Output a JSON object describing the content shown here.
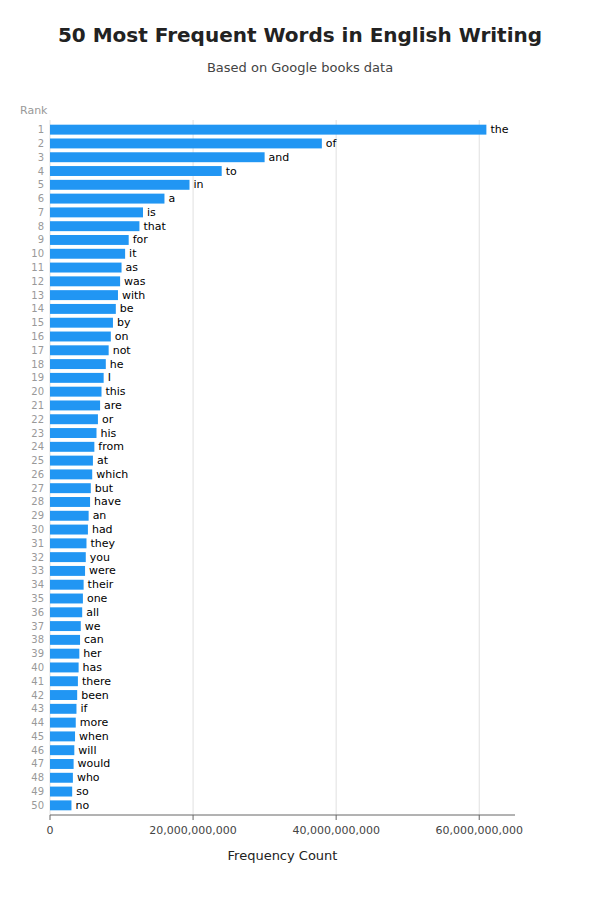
{
  "chart_data": {
    "type": "bar",
    "orientation": "horizontal",
    "title": "50 Most Frequent Words in English Writing",
    "subtitle": "Based on Google books data",
    "x_label": "Frequency Count",
    "y_label": "Rank",
    "categories": [
      "1",
      "2",
      "3",
      "4",
      "5",
      "6",
      "7",
      "8",
      "9",
      "10",
      "11",
      "12",
      "13",
      "14",
      "15",
      "16",
      "17",
      "18",
      "19",
      "20",
      "21",
      "22",
      "23",
      "24",
      "25",
      "26",
      "27",
      "28",
      "29",
      "30",
      "31",
      "32",
      "33",
      "34",
      "35",
      "36",
      "37",
      "38",
      "39",
      "40",
      "41",
      "42",
      "43",
      "44",
      "45",
      "46",
      "47",
      "48",
      "49",
      "50"
    ],
    "annotations": [
      "the",
      "of",
      "and",
      "to",
      "in",
      "a",
      "is",
      "that",
      "for",
      "it",
      "as",
      "was",
      "with",
      "be",
      "by",
      "on",
      "not",
      "he",
      "I",
      "this",
      "are",
      "or",
      "his",
      "from",
      "at",
      "which",
      "but",
      "have",
      "an",
      "had",
      "they",
      "you",
      "were",
      "their",
      "one",
      "all",
      "we",
      "can",
      "her",
      "has",
      "there",
      "been",
      "if",
      "more",
      "when",
      "will",
      "would",
      "who",
      "so",
      "no"
    ],
    "values": [
      61000000000,
      38000000000,
      30000000000,
      24000000000,
      19500000000,
      16000000000,
      13000000000,
      12500000000,
      11000000000,
      10500000000,
      10000000000,
      9800000000,
      9500000000,
      9200000000,
      8800000000,
      8500000000,
      8200000000,
      7800000000,
      7500000000,
      7200000000,
      7000000000,
      6700000000,
      6500000000,
      6200000000,
      6000000000,
      5900000000,
      5700000000,
      5600000000,
      5400000000,
      5300000000,
      5100000000,
      5000000000,
      4900000000,
      4700000000,
      4600000000,
      4500000000,
      4300000000,
      4200000000,
      4100000000,
      4000000000,
      3900000000,
      3800000000,
      3700000000,
      3600000000,
      3500000000,
      3400000000,
      3300000000,
      3200000000,
      3100000000,
      3000000000
    ],
    "color": "#2196F3",
    "xlim": [
      0,
      65000000000
    ],
    "xticks": [
      0,
      {
        "value": 20000000000,
        "label": "20,000,000,000"
      },
      {
        "value": 40000000000,
        "label": "40,000,000,000"
      },
      {
        "value": 60000000000,
        "label": "60,000,000,000"
      }
    ],
    "grid": true
  }
}
